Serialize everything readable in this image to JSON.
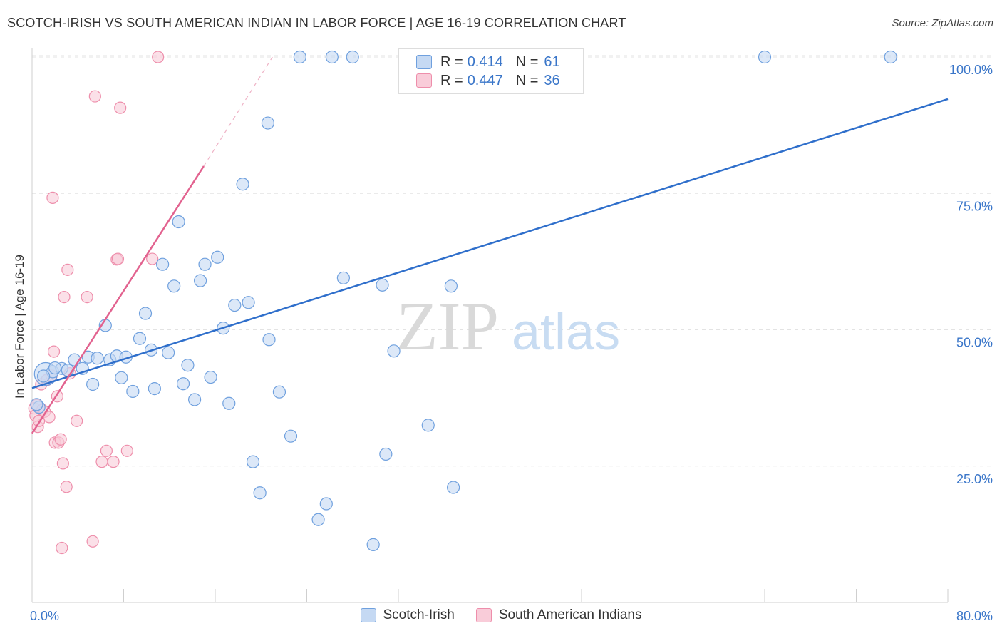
{
  "header": {
    "title": "SCOTCH-IRISH VS SOUTH AMERICAN INDIAN IN LABOR FORCE | AGE 16-19 CORRELATION CHART",
    "source": "Source: ZipAtlas.com"
  },
  "watermark": {
    "zip": "ZIP",
    "atlas": "atlas"
  },
  "legend": {
    "rows": [
      {
        "r_label": "R =",
        "r_value": "0.414",
        "n_label": "N =",
        "n_value": "61",
        "color": "#a9c8ee"
      },
      {
        "r_label": "R =",
        "r_value": "0.447",
        "n_label": "N =",
        "n_value": "36",
        "color": "#f6b6c8"
      }
    ]
  },
  "colors": {
    "blue_fill": "#c5d9f3",
    "blue_stroke": "#6fa0de",
    "blue_line": "#2f6fcb",
    "pink_fill": "#f9ccd9",
    "pink_stroke": "#ee8eab",
    "pink_line": "#e2628f",
    "tick_text": "#3a76c9",
    "grid": "#e3e3e3"
  },
  "chart_data": {
    "type": "scatter",
    "title": "SCOTCH-IRISH VS SOUTH AMERICAN INDIAN IN LABOR FORCE | AGE 16-19 CORRELATION CHART",
    "xlabel": "",
    "ylabel": "In Labor Force | Age 16-19",
    "xlim": [
      0,
      80
    ],
    "ylim": [
      0,
      105
    ],
    "x_tick_labels": [
      "0.0%",
      "80.0%"
    ],
    "y_tick_labels": [
      "25.0%",
      "50.0%",
      "75.0%",
      "100.0%"
    ],
    "y_tick_values": [
      25,
      50,
      75,
      100
    ],
    "grid": true,
    "series": [
      {
        "name": "Scotch-Irish",
        "points": [
          [
            1.2,
            41.9
          ],
          [
            1.8,
            42.3
          ],
          [
            2.6,
            42.9
          ],
          [
            3.1,
            42.6
          ],
          [
            3.7,
            44.5
          ],
          [
            4.4,
            42.9
          ],
          [
            4.9,
            45.0
          ],
          [
            5.3,
            40.0
          ],
          [
            5.7,
            44.8
          ],
          [
            6.4,
            50.8
          ],
          [
            6.8,
            44.5
          ],
          [
            7.4,
            45.2
          ],
          [
            7.8,
            41.2
          ],
          [
            8.2,
            45.0
          ],
          [
            8.8,
            38.7
          ],
          [
            9.4,
            48.4
          ],
          [
            9.9,
            53.0
          ],
          [
            10.4,
            46.3
          ],
          [
            10.7,
            39.2
          ],
          [
            11.4,
            62.0
          ],
          [
            11.9,
            45.8
          ],
          [
            12.4,
            58.0
          ],
          [
            12.8,
            69.8
          ],
          [
            13.2,
            40.1
          ],
          [
            13.6,
            43.5
          ],
          [
            14.2,
            37.2
          ],
          [
            14.7,
            59.0
          ],
          [
            15.1,
            62.0
          ],
          [
            15.6,
            41.3
          ],
          [
            16.2,
            63.3
          ],
          [
            16.7,
            50.3
          ],
          [
            17.2,
            36.5
          ],
          [
            17.7,
            54.5
          ],
          [
            18.4,
            76.7
          ],
          [
            18.9,
            55.0
          ],
          [
            19.3,
            25.8
          ],
          [
            19.9,
            20.1
          ],
          [
            20.6,
            87.9
          ],
          [
            20.7,
            48.2
          ],
          [
            21.6,
            38.6
          ],
          [
            22.6,
            30.5
          ],
          [
            23.4,
            100.0
          ],
          [
            25.0,
            15.2
          ],
          [
            25.7,
            18.1
          ],
          [
            26.2,
            100.0
          ],
          [
            27.2,
            59.5
          ],
          [
            28.0,
            100.0
          ],
          [
            29.8,
            10.6
          ],
          [
            30.6,
            58.2
          ],
          [
            30.9,
            27.2
          ],
          [
            31.6,
            46.1
          ],
          [
            33.0,
            100.0
          ],
          [
            34.6,
            32.5
          ],
          [
            36.6,
            58.0
          ],
          [
            36.8,
            21.1
          ],
          [
            64.0,
            100.0
          ],
          [
            75.0,
            100.0
          ],
          [
            0.6,
            35.8
          ],
          [
            0.4,
            36.3
          ],
          [
            1.0,
            41.5
          ],
          [
            2.0,
            43.0
          ]
        ]
      },
      {
        "name": "South American Indians",
        "points": [
          [
            0.2,
            35.6
          ],
          [
            0.3,
            34.3
          ],
          [
            0.4,
            36.2
          ],
          [
            0.5,
            32.2
          ],
          [
            0.6,
            33.3
          ],
          [
            0.8,
            40.0
          ],
          [
            0.9,
            35.3
          ],
          [
            1.1,
            35.0
          ],
          [
            1.3,
            40.8
          ],
          [
            1.5,
            34.0
          ],
          [
            1.7,
            41.6
          ],
          [
            1.8,
            74.2
          ],
          [
            1.9,
            46.0
          ],
          [
            2.0,
            29.3
          ],
          [
            2.2,
            37.8
          ],
          [
            2.3,
            29.3
          ],
          [
            2.5,
            29.9
          ],
          [
            2.6,
            10.0
          ],
          [
            2.7,
            25.5
          ],
          [
            2.8,
            56.0
          ],
          [
            3.0,
            21.2
          ],
          [
            3.1,
            61.0
          ],
          [
            3.3,
            42.0
          ],
          [
            3.9,
            33.3
          ],
          [
            4.8,
            56.0
          ],
          [
            5.3,
            11.2
          ],
          [
            5.5,
            92.8
          ],
          [
            6.1,
            25.8
          ],
          [
            6.5,
            27.8
          ],
          [
            7.1,
            25.8
          ],
          [
            7.4,
            62.9
          ],
          [
            7.5,
            63.0
          ],
          [
            7.7,
            90.7
          ],
          [
            8.3,
            27.8
          ],
          [
            10.5,
            63.0
          ],
          [
            11.0,
            100.0
          ]
        ]
      }
    ],
    "trend_lines": [
      {
        "series": "Scotch-Irish",
        "from": [
          0,
          39.3
        ],
        "to": [
          80,
          92.3
        ]
      },
      {
        "series": "South American Indians",
        "from": [
          0,
          31.0
        ],
        "to": [
          15.0,
          80.0
        ],
        "dashed_to": [
          21.0,
          100.0
        ]
      }
    ]
  }
}
